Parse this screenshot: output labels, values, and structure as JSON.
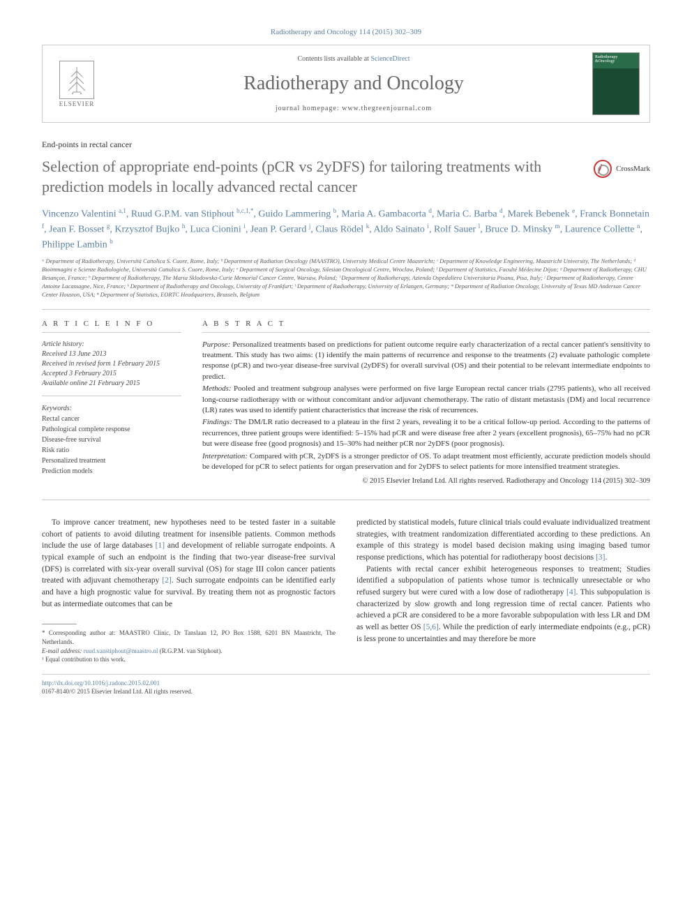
{
  "journal_ref": "Radiotherapy and Oncology 114 (2015) 302–309",
  "header": {
    "elsevier_label": "ELSEVIER",
    "contents_prefix": "Contents lists available at ",
    "contents_link": "ScienceDirect",
    "journal_name": "Radiotherapy and Oncology",
    "homepage_prefix": "journal homepage: ",
    "homepage_url": "www.thegreenjournal.com",
    "cover_title": "Radiotherapy\n&Oncology"
  },
  "article_type": "End-points in rectal cancer",
  "title": "Selection of appropriate end-points (pCR vs 2yDFS) for tailoring treatments with prediction models in locally advanced rectal cancer",
  "crossmark_label": "CrossMark",
  "authors_html": "Vincenzo Valentini <sup>a,1</sup>, Ruud G.P.M. van Stiphout <sup>b,c,1,*</sup>, Guido Lammering <sup>b</sup>, Maria A. Gambacorta <sup>d</sup>, Maria C. Barba <sup>d</sup>, Marek Bebenek <sup>e</sup>, Franck Bonnetain <sup>f</sup>, Jean F. Bosset <sup>g</sup>, Krzysztof Bujko <sup>h</sup>, Luca Cionini <sup>i</sup>, Jean P. Gerard <sup>j</sup>, Claus Rödel <sup>k</sup>, Aldo Sainato <sup>i</sup>, Rolf Sauer <sup>l</sup>, Bruce D. Minsky <sup>m</sup>, Laurence Collette <sup>n</sup>, Philippe Lambin <sup>b</sup>",
  "affiliations": "ᵃ Department of Radiotherapy, Università Cattolica S. Cuore, Rome, Italy; ᵇ Department of Radiation Oncology (MAASTRO), University Medical Centre Maastricht; ᶜ Department of Knowledge Engineering, Maastricht University, The Netherlands; ᵈ Bioimmagini e Scienze Radiologiche, Università Cattolica S. Cuore, Rome, Italy; ᵉ Department of Surgical Oncology, Silesian Oncological Centre, Wroclaw, Poland; ᶠ Department of Statistics, Faculté Médecine Dijon; ᵍ Department of Radiotherapy, CHU Besançon, France; ʰ Department of Radiotherapy, The Maria Sklodowska-Curie Memorial Cancer Centre, Warsaw, Poland; ⁱ Department of Radiotherapy, Azienda Ospedaliera Universitaria Pisana, Pisa, Italy; ʲ Department of Radiotherapy, Centre Antoine Lacassagne, Nice, France; ᵏ Department of Radiotherapy and Oncology, University of Frankfurt; ˡ Department of Radiotherapy, University of Erlangen, Germany; ᵐ Department of Radiation Oncology, University of Texas MD Anderson Cancer Center Houston, USA; ⁿ Department of Statistics, EORTC Headquarters, Brussels, Belgium",
  "info": {
    "heading": "A R T I C L E   I N F O",
    "history_label": "Article history:",
    "history": [
      "Received 13 June 2013",
      "Received in revised form 1 February 2015",
      "Accepted 3 February 2015",
      "Available online 21 February 2015"
    ],
    "keywords_label": "Keywords:",
    "keywords": [
      "Rectal cancer",
      "Pathological complete response",
      "Disease-free survival",
      "Risk ratio",
      "Personalized treatment",
      "Prediction models"
    ]
  },
  "abstract": {
    "heading": "A B S T R A C T",
    "sections": [
      {
        "label": "Purpose:",
        "text": "Personalized treatments based on predictions for patient outcome require early characterization of a rectal cancer patient's sensitivity to treatment. This study has two aims: (1) identify the main patterns of recurrence and response to the treatments (2) evaluate pathologic complete response (pCR) and two-year disease-free survival (2yDFS) for overall survival (OS) and their potential to be relevant intermediate endpoints to predict."
      },
      {
        "label": "Methods:",
        "text": "Pooled and treatment subgroup analyses were performed on five large European rectal cancer trials (2795 patients), who all received long-course radiotherapy with or without concomitant and/or adjuvant chemotherapy. The ratio of distant metastasis (DM) and local recurrence (LR) rates was used to identify patient characteristics that increase the risk of recurrences."
      },
      {
        "label": "Findings:",
        "text": "The DM/LR ratio decreased to a plateau in the first 2 years, revealing it to be a critical follow-up period. According to the patterns of recurrences, three patient groups were identified: 5–15% had pCR and were disease free after 2 years (excellent prognosis), 65–75% had no pCR but were disease free (good prognosis) and 15–30% had neither pCR nor 2yDFS (poor prognosis)."
      },
      {
        "label": "Interpretation:",
        "text": "Compared with pCR, 2yDFS is a stronger predictor of OS. To adapt treatment most efficiently, accurate prediction models should be developed for pCR to select patients for organ preservation and for 2yDFS to select patients for more intensified treatment strategies."
      }
    ],
    "copyright": "© 2015 Elsevier Ireland Ltd. All rights reserved. Radiotherapy and Oncology 114 (2015) 302–309"
  },
  "body": {
    "col1": {
      "p1_pre": "To improve cancer treatment, new hypotheses need to be tested faster in a suitable cohort of patients to avoid diluting treatment for insensible patients. Common methods include the use of large databases ",
      "c1": "[1]",
      "p1_mid": " and development of reliable surrogate endpoints. A typical example of such an endpoint is the finding that two-year disease-free survival (DFS) is correlated with six-year overall survival (OS) for stage III colon cancer patients treated with adjuvant chemotherapy ",
      "c2": "[2]",
      "p1_post": ". Such surrogate endpoints can be identified early and have a high prognostic value for survival. By treating them not as prognostic factors but as intermediate outcomes that can be"
    },
    "col2": {
      "p1_pre": "predicted by statistical models, future clinical trials could evaluate individualized treatment strategies, with treatment randomization differentiated according to these predictions. An example of this strategy is model based decision making using imaging based tumor response predictions, which has potential for radiotherapy boost decisions ",
      "c3": "[3]",
      "p1_post": ".",
      "p2_pre": "Patients with rectal cancer exhibit heterogeneous responses to treatment; Studies identified a subpopulation of patients whose tumor is technically unresectable or who refused surgery but were cured with a low dose of radiotherapy ",
      "c4": "[4]",
      "p2_mid": ". This subpopulation is characterized by slow growth and long regression time of rectal cancer. Patients who achieved a pCR are considered to be a more favorable subpopulation with less LR and DM as well as better OS ",
      "c56": "[5,6]",
      "p2_post": ". While the prediction of early intermediate endpoints (e.g., pCR) is less prone to uncertainties and may therefore be more"
    }
  },
  "footnotes": {
    "corr_label": "* Corresponding author at: MAASTRO Clinic, Dr Tanslaan 12, PO Box 1588, 6201 BN Maastricht, The Netherlands.",
    "email_label": "E-mail address: ",
    "email": "ruud.vanstiphout@maastro.nl",
    "email_who": " (R.G.P.M. van Stiphout).",
    "equal": "¹ Equal contribution to this work."
  },
  "footer": {
    "doi": "http://dx.doi.org/10.1016/j.radonc.2015.02.001",
    "issn_line": "0167-8140/© 2015 Elsevier Ireland Ltd. All rights reserved."
  },
  "colors": {
    "link": "#5b7fa6",
    "title_gray": "#6a6a6a",
    "border": "#cccccc",
    "text": "#333333",
    "cover_green": "#2a6b4a"
  },
  "typography": {
    "title_fontsize": 22,
    "journal_fontsize": 28,
    "body_fontsize": 11.5,
    "abstract_fontsize": 11,
    "affiliation_fontsize": 8.5
  }
}
